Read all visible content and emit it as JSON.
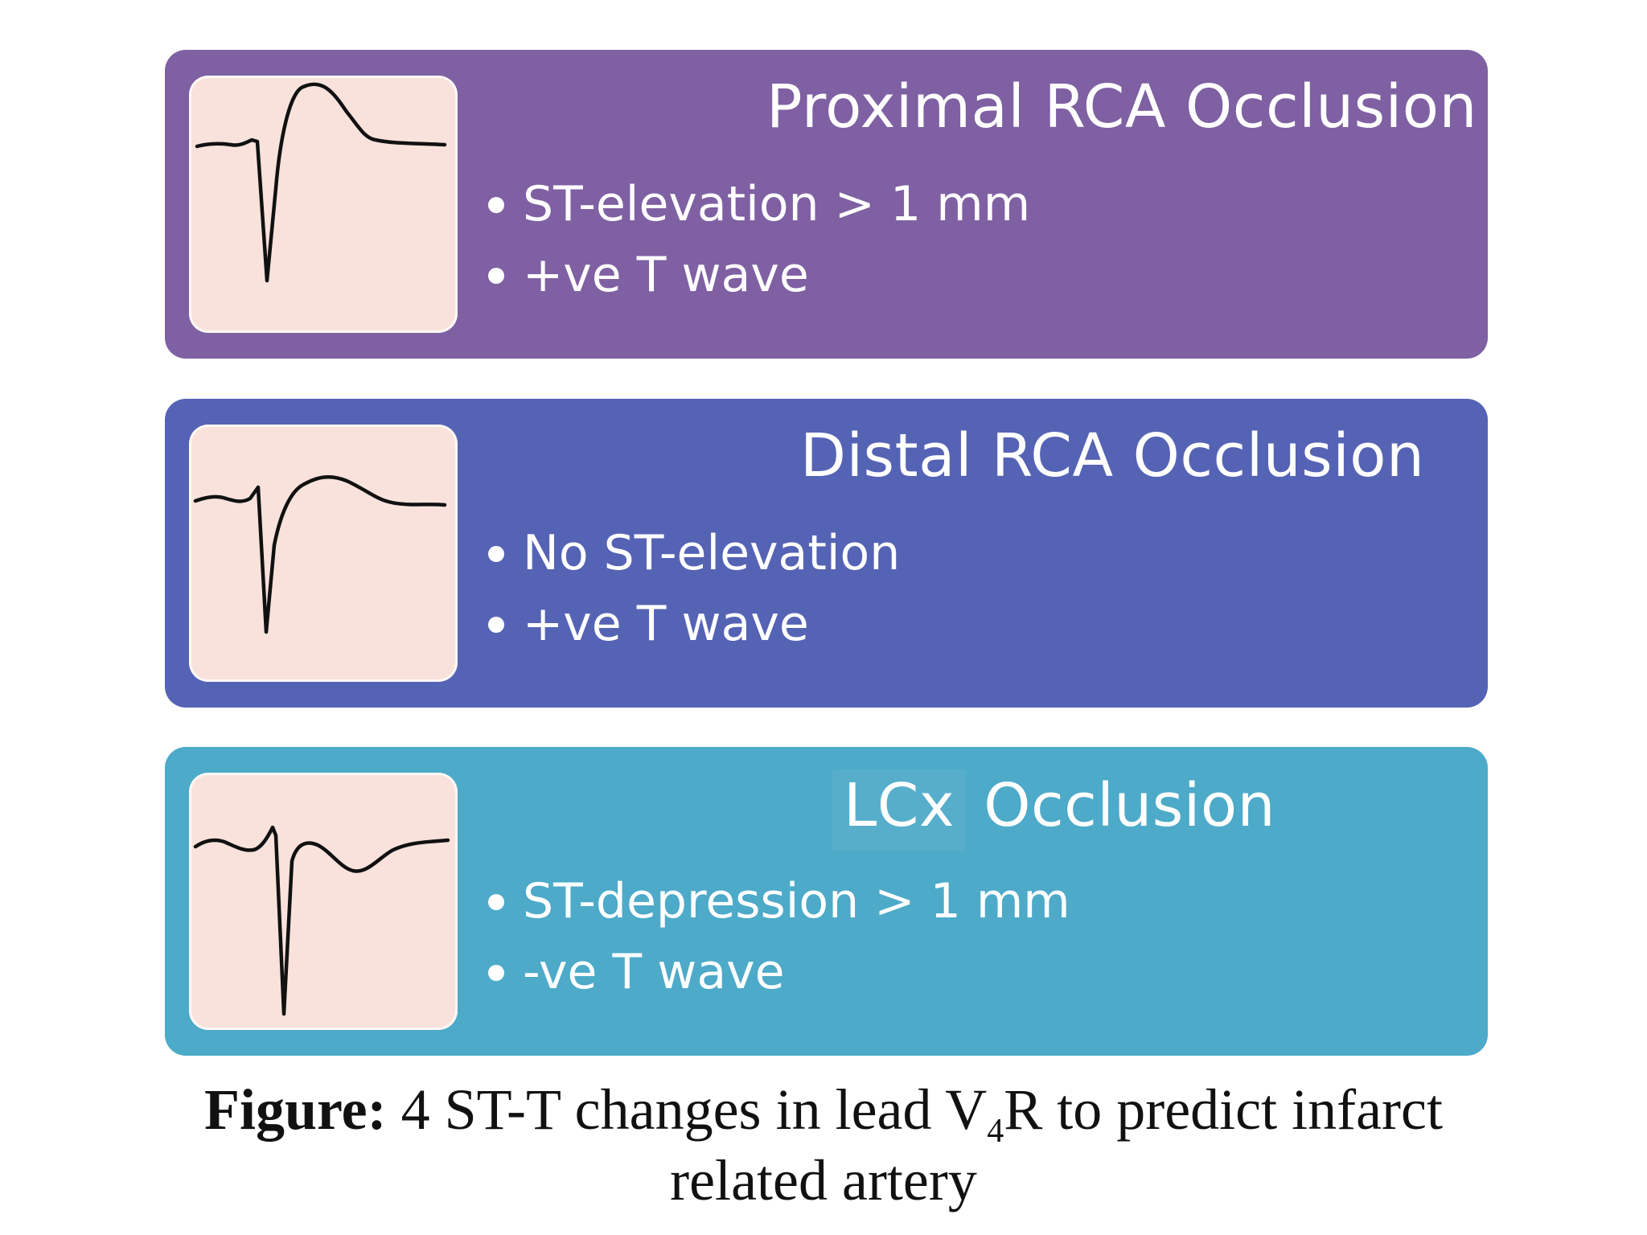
{
  "colors": {
    "panel_proximal": "#7f60a3",
    "panel_distal": "#5563b5",
    "panel_lcx": "#4daac9",
    "ecg_background": "#f9e2dc"
  },
  "panels": [
    {
      "title": "Proximal RCA Occlusion",
      "bullets": [
        "ST-elevation > 1 mm",
        "+ve T wave"
      ],
      "icon": "ecg-waveform-icon"
    },
    {
      "title": "Distal RCA Occlusion",
      "bullets": [
        "No ST-elevation",
        "+ve T wave"
      ],
      "icon": "ecg-waveform-icon"
    },
    {
      "title_part1": "LCx",
      "title_part2": "Occlusion",
      "bullets": [
        "ST-depression > 1 mm",
        "-ve T wave"
      ],
      "icon": "ecg-waveform-icon"
    }
  ],
  "caption": {
    "label": "Figure:",
    "text_before_sub": " 4 ST-T changes in lead V",
    "subscript": "4",
    "text_after_sub": "R to predict infarct",
    "line2": "related artery"
  }
}
